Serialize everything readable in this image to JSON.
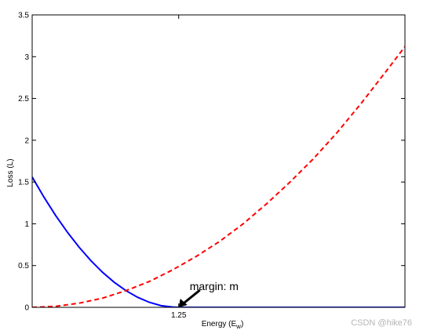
{
  "chart_data": {
    "type": "line",
    "xlabel_main": "Energy (E",
    "xlabel_sub": "w",
    "xlabel_close": ")",
    "ylabel": "Loss (L)",
    "xlim": [
      0,
      3.18
    ],
    "ylim": [
      0,
      3.5
    ],
    "x_ticks": [
      1.25
    ],
    "x_tick_labels": [
      "1.25"
    ],
    "y_ticks": [
      0,
      0.5,
      1,
      1.5,
      2,
      2.5,
      3,
      3.5
    ],
    "y_tick_labels": [
      "0",
      "0.5",
      "1",
      "1.5",
      "2",
      "2.5",
      "3",
      "3.5"
    ],
    "grid": false,
    "series": [
      {
        "style": "solid",
        "color": "#0000ff",
        "x": [
          0,
          0.1,
          0.2,
          0.3,
          0.4,
          0.5,
          0.6,
          0.7,
          0.8,
          0.9,
          1.0,
          1.1,
          1.2,
          1.25,
          1.5,
          2.0,
          2.5,
          3.0,
          3.18
        ],
        "y": [
          1.56,
          1.32,
          1.1,
          0.9,
          0.72,
          0.56,
          0.42,
          0.3,
          0.2,
          0.12,
          0.06,
          0.02,
          0.003,
          0,
          0,
          0,
          0,
          0,
          0
        ]
      },
      {
        "style": "dashed",
        "color": "#ff0000",
        "x": [
          0,
          0.2,
          0.4,
          0.6,
          0.8,
          1.0,
          1.2,
          1.4,
          1.6,
          1.8,
          2.0,
          2.2,
          2.4,
          2.6,
          2.8,
          3.0,
          3.18
        ],
        "y": [
          0,
          0.012,
          0.05,
          0.11,
          0.2,
          0.31,
          0.45,
          0.61,
          0.79,
          1.0,
          1.24,
          1.5,
          1.78,
          2.09,
          2.43,
          2.79,
          3.12
        ]
      }
    ],
    "annotation": {
      "text": "margin: m",
      "target_x": 1.25,
      "target_y": 0
    }
  },
  "watermark": "CSDN @hike76"
}
